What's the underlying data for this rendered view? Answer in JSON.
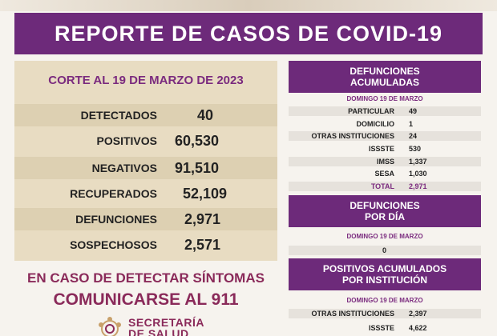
{
  "title": "REPORTE DE CASOS DE COVID-19",
  "cutoff": "CORTE AL 19 DE MARZO DE 2023",
  "stats": [
    {
      "label": "DETECTADOS",
      "value": "40"
    },
    {
      "label": "POSITIVOS",
      "value": "60,530"
    },
    {
      "label": "NEGATIVOS",
      "value": "91,510"
    },
    {
      "label": "RECUPERADOS",
      "value": "52,109"
    },
    {
      "label": "DEFUNCIONES",
      "value": "2,971"
    },
    {
      "label": "SOSPECHOSOS",
      "value": "2,571"
    }
  ],
  "alert": {
    "line1": "EN CASO DE DETECTAR SÍNTOMAS",
    "line2": "COMUNICARSE AL 911"
  },
  "logo": {
    "line1": "SECRETARÍA",
    "line2": "DE SALUD"
  },
  "defunciones_acumuladas": {
    "title_line1": "DEFUNCIONES",
    "title_line2": "ACUMULADAS",
    "date": "DOMINGO 19 DE MARZO",
    "rows": [
      {
        "label": "PARTICULAR",
        "value": "49"
      },
      {
        "label": "DOMICILIO",
        "value": "1"
      },
      {
        "label": "OTRAS INSTITUCIONES",
        "value": "24"
      },
      {
        "label": "ISSSTE",
        "value": "530"
      },
      {
        "label": "IMSS",
        "value": "1,337"
      },
      {
        "label": "SESA",
        "value": "1,030"
      },
      {
        "label": "TOTAL",
        "value": "2,971"
      }
    ]
  },
  "defunciones_dia": {
    "title_line1": "DEFUNCIONES",
    "title_line2": "POR DÍA",
    "date": "DOMINGO 19 DE MARZO",
    "value": "0"
  },
  "positivos_institucion": {
    "title_line1": "POSITIVOS ACUMULADOS",
    "title_line2": "POR INSTITUCIÓN",
    "date": "DOMINGO 19 DE MARZO",
    "rows": [
      {
        "label": "OTRAS INSTITUCIONES",
        "value": "2,397"
      },
      {
        "label": "ISSSTE",
        "value": "4,622"
      }
    ]
  }
}
